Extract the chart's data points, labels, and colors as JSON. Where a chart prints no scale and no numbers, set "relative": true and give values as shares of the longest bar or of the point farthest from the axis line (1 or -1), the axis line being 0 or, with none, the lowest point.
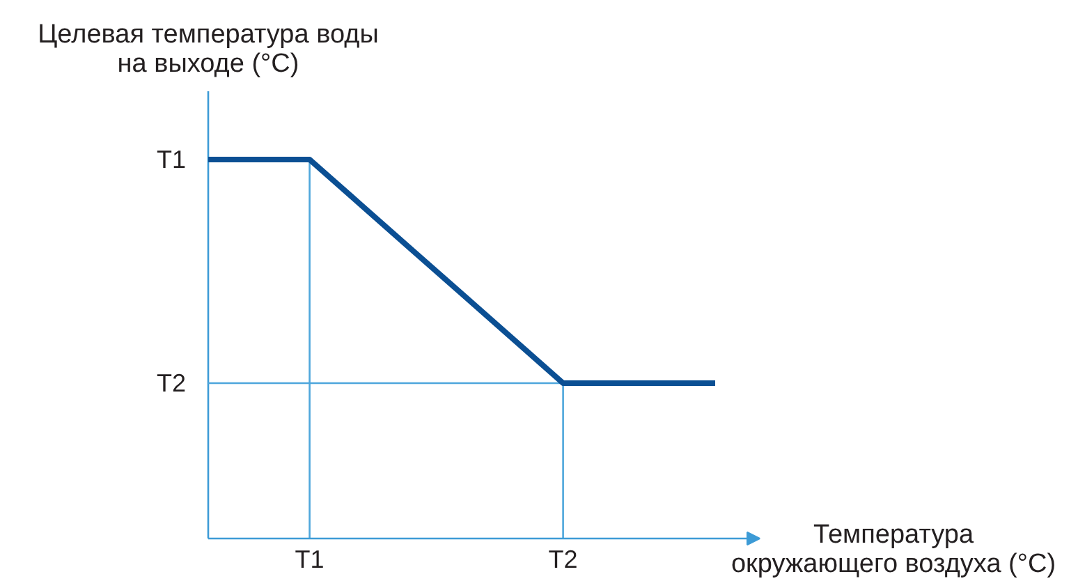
{
  "chart_data": {
    "type": "line",
    "relative": true,
    "xlabel": "Температура\nокружающего воздуха (°C)",
    "ylabel": "Целевая температура воды\nна выходе (°C)",
    "categories": [
      null,
      null,
      "T1",
      null,
      null,
      null,
      null,
      "T2",
      null,
      null,
      null
    ],
    "annotations": [
      "T1",
      "T2"
    ],
    "series": [
      {
        "color": "#0b4f93",
        "values": [
          1,
          1,
          1,
          0.882,
          0.764,
          0.646,
          0.528,
          0.41,
          0.41,
          0.41,
          0.41
        ]
      }
    ],
    "ref_lines": [
      {
        "axis": "x",
        "value": "T1",
        "color": "#4ea6dc"
      },
      {
        "axis": "x",
        "value": "T2",
        "color": "#4ea6dc"
      },
      {
        "axis": "y",
        "value": 0.41,
        "color": "#4ea6dc"
      }
    ]
  }
}
